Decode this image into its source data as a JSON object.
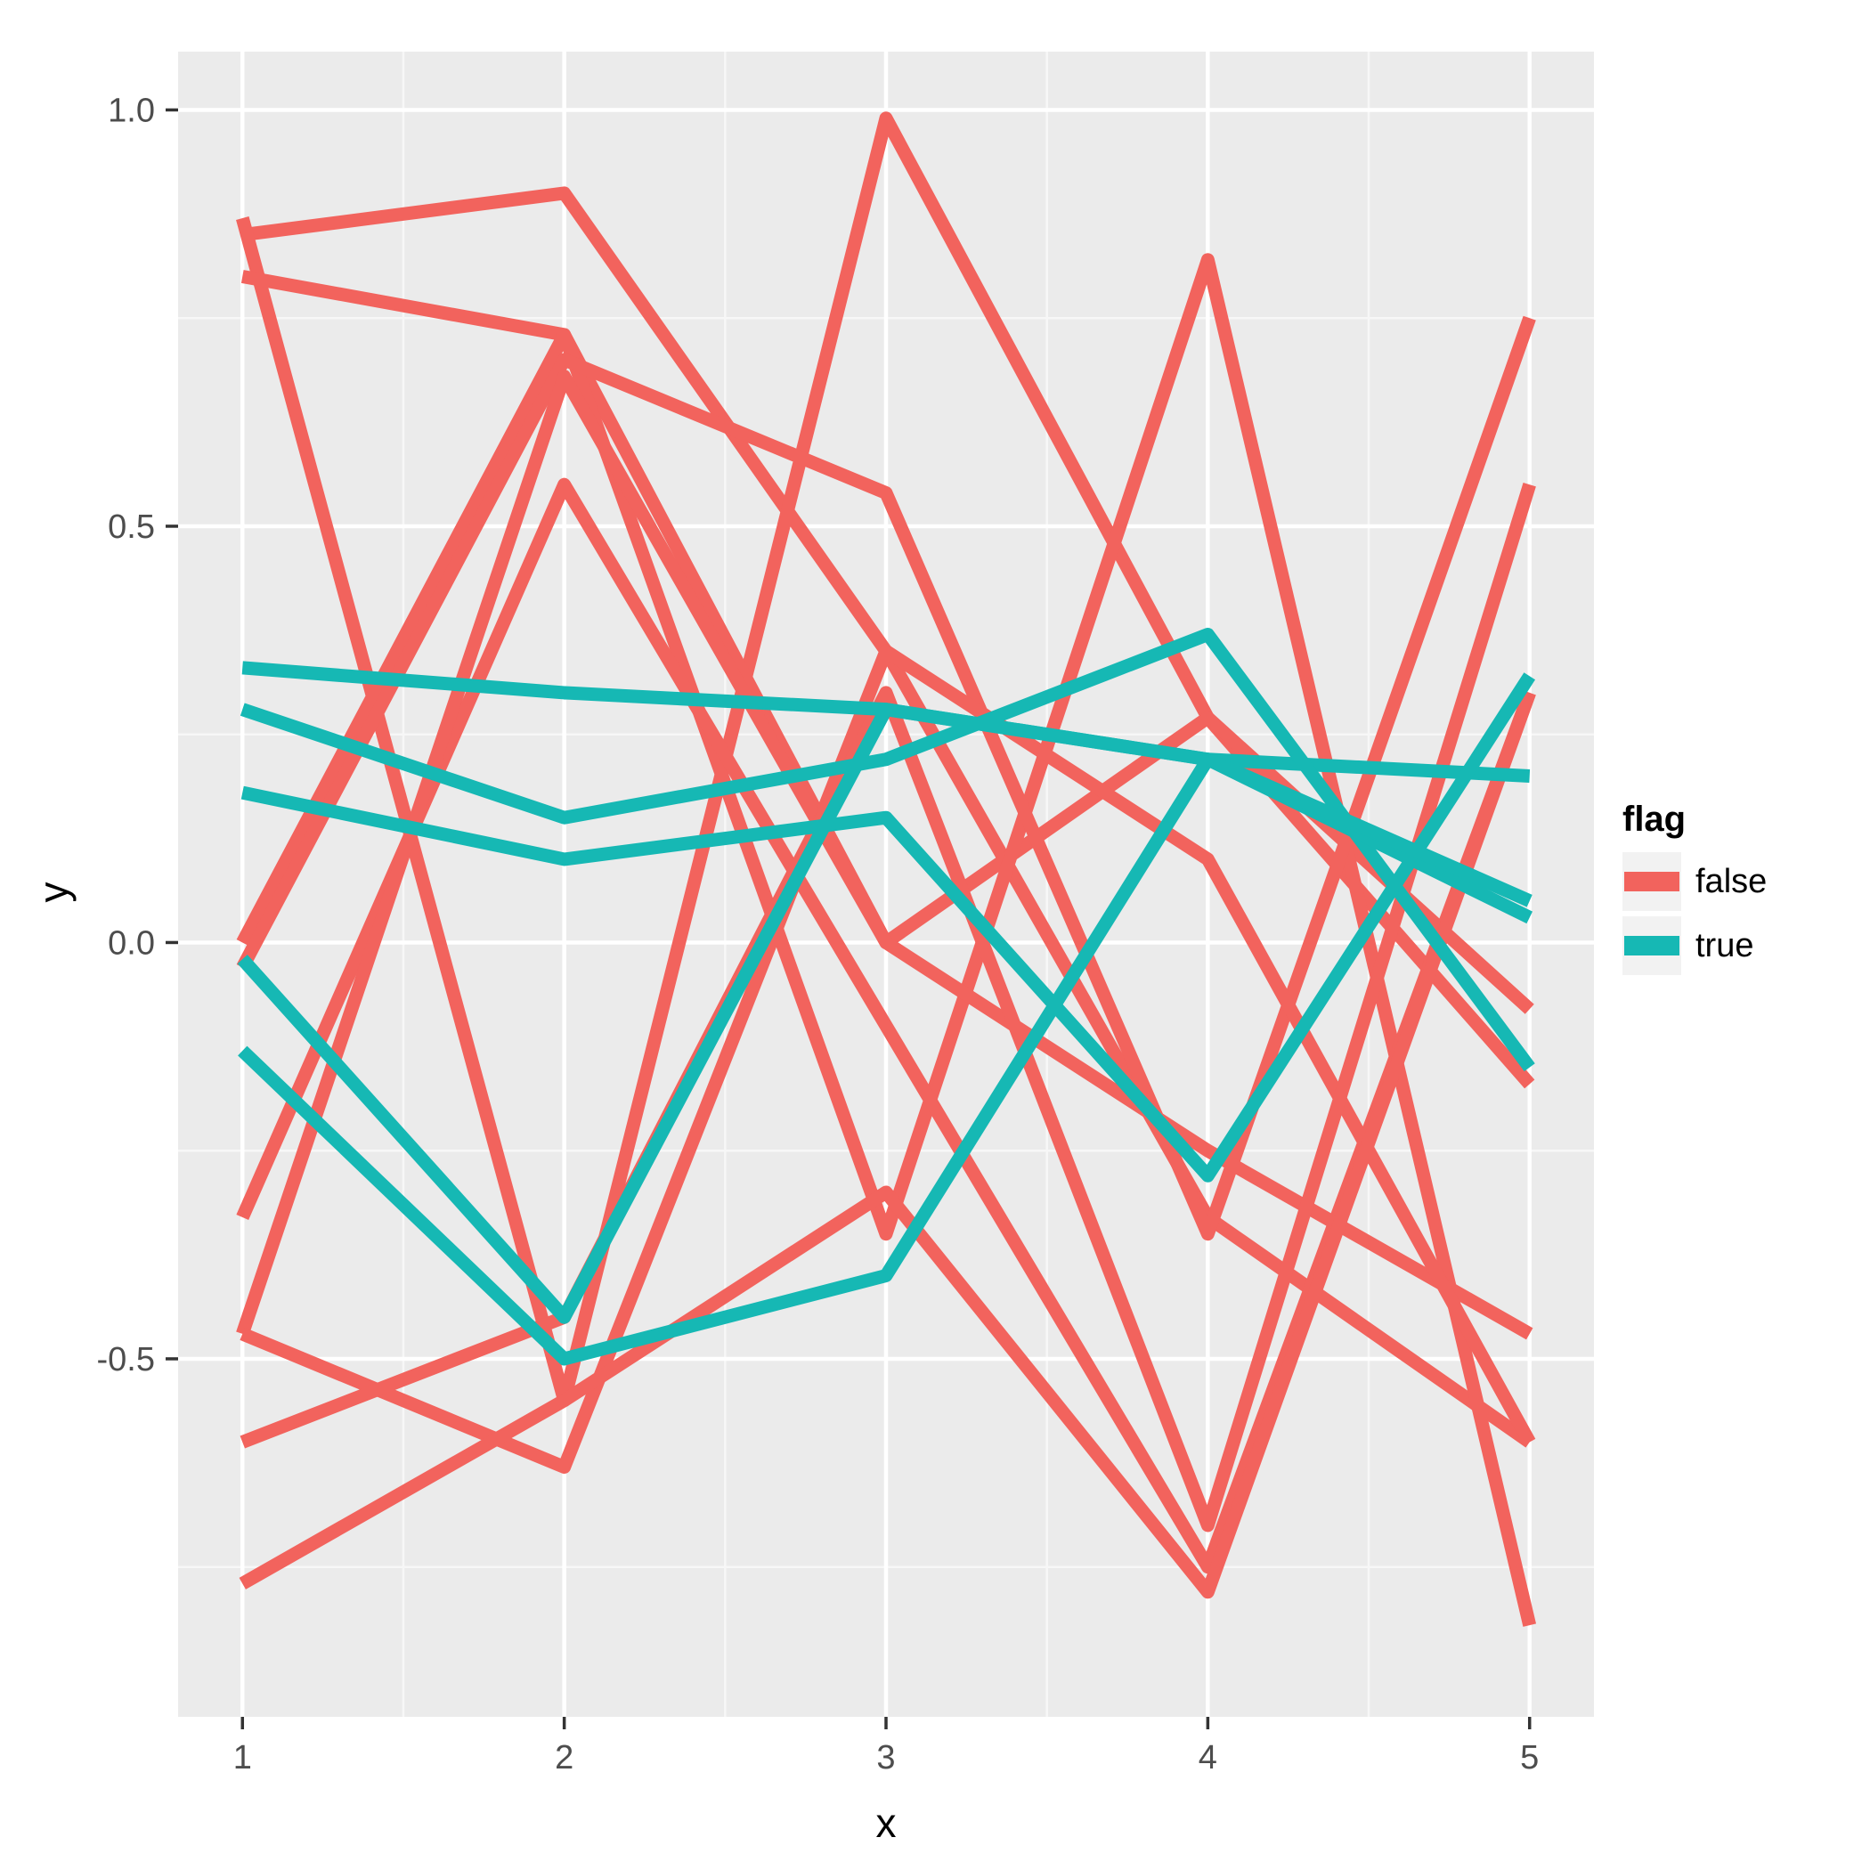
{
  "page": {
    "background": "#FFFFFF"
  },
  "chart_data": {
    "type": "line",
    "title": "",
    "xlabel": "x",
    "ylabel": "y",
    "x": [
      1,
      2,
      3,
      4,
      5
    ],
    "xlim": [
      0.8,
      5.2
    ],
    "ylim": [
      -0.93,
      1.07
    ],
    "x_ticks": {
      "values": [
        1,
        2,
        3,
        4,
        5
      ],
      "labels": [
        "1",
        "2",
        "3",
        "4",
        "5"
      ]
    },
    "y_ticks": {
      "values": [
        -0.5,
        0.0,
        0.5,
        1.0
      ],
      "labels": [
        "-0.5",
        "0.0",
        "0.5",
        "1.0"
      ]
    },
    "x_minor": [
      1.5,
      2.5,
      3.5,
      4.5
    ],
    "y_minor": [
      -0.75,
      -0.25,
      0.25,
      0.75
    ],
    "grid": true,
    "panel_bg": "#EBEBEB",
    "grid_major_color": "#FFFFFF",
    "grid_minor_color": "#F7F7F7",
    "tick_mark_color": "#333333",
    "tick_label_color": "#4D4D4D",
    "line_width": 15,
    "legend": {
      "title": "flag",
      "position": "right",
      "key_bg": "#F2F2F2",
      "entries": [
        {
          "label": "false",
          "color": "#F2635D"
        },
        {
          "label": "true",
          "color": "#16B8B4"
        }
      ]
    },
    "series": [
      {
        "flag": "false",
        "color": "#F2635D",
        "values": [
          0.85,
          0.9,
          0.35,
          -0.33,
          -0.6
        ]
      },
      {
        "flag": "false",
        "color": "#F2635D",
        "values": [
          0.87,
          -0.55,
          0.99,
          0.27,
          -0.17
        ]
      },
      {
        "flag": "false",
        "color": "#F2635D",
        "values": [
          0.8,
          0.73,
          0.0,
          0.27,
          -0.08
        ]
      },
      {
        "flag": "false",
        "color": "#F2635D",
        "values": [
          0.0,
          0.73,
          -0.35,
          0.82,
          -0.82
        ]
      },
      {
        "flag": "false",
        "color": "#F2635D",
        "values": [
          -0.03,
          0.7,
          0.54,
          -0.35,
          0.75
        ]
      },
      {
        "flag": "false",
        "color": "#F2635D",
        "values": [
          -0.33,
          0.55,
          -0.1,
          -0.75,
          0.3
        ]
      },
      {
        "flag": "false",
        "color": "#F2635D",
        "values": [
          -0.47,
          0.68,
          0.0,
          -0.25,
          -0.47
        ]
      },
      {
        "flag": "false",
        "color": "#F2635D",
        "values": [
          -0.47,
          -0.63,
          0.35,
          0.1,
          -0.6
        ]
      },
      {
        "flag": "false",
        "color": "#F2635D",
        "values": [
          -0.6,
          -0.45,
          0.3,
          -0.7,
          0.55
        ]
      },
      {
        "flag": "false",
        "color": "#F2635D",
        "values": [
          -0.77,
          -0.55,
          -0.3,
          -0.78,
          0.3
        ]
      },
      {
        "flag": "true",
        "color": "#16B8B4",
        "values": [
          0.33,
          0.3,
          0.28,
          0.22,
          0.2
        ]
      },
      {
        "flag": "true",
        "color": "#16B8B4",
        "values": [
          0.28,
          0.15,
          0.22,
          0.37,
          -0.15
        ]
      },
      {
        "flag": "true",
        "color": "#16B8B4",
        "values": [
          0.18,
          0.1,
          0.15,
          -0.28,
          0.32
        ]
      },
      {
        "flag": "true",
        "color": "#16B8B4",
        "values": [
          -0.02,
          -0.45,
          0.28,
          0.22,
          0.03
        ]
      },
      {
        "flag": "true",
        "color": "#16B8B4",
        "values": [
          -0.13,
          -0.5,
          -0.4,
          0.22,
          0.05
        ]
      }
    ]
  }
}
